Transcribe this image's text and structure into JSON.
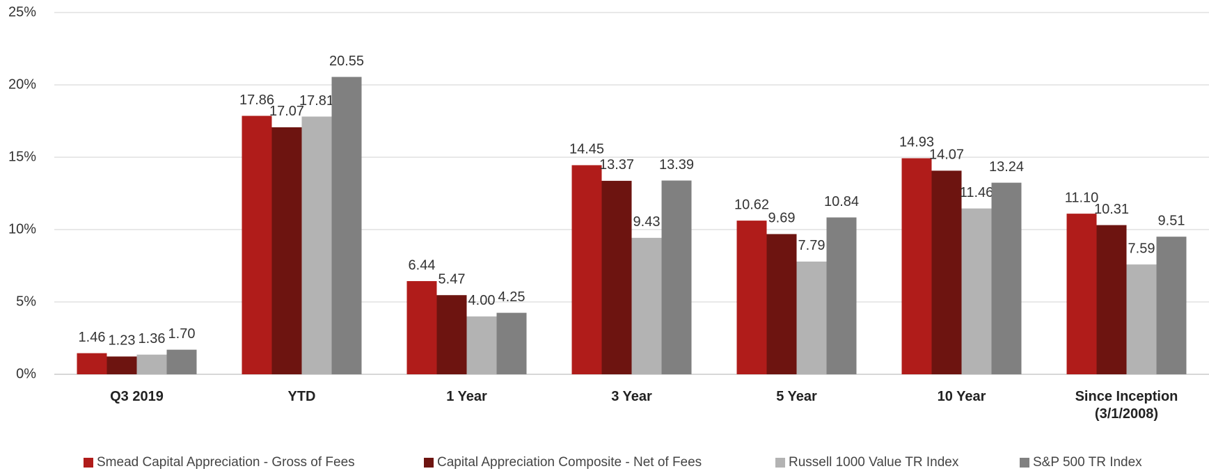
{
  "chart_data": {
    "type": "bar",
    "categories": [
      "Q3 2019",
      "YTD",
      "1 Year",
      "3 Year",
      "5 Year",
      "10 Year",
      "Since Inception (3/1/2008)"
    ],
    "series": [
      {
        "name": "Smead Capital Appreciation - Gross of Fees",
        "color": "#b01c1a",
        "values": [
          1.46,
          17.86,
          6.44,
          14.45,
          10.62,
          14.93,
          11.1
        ],
        "value_labels": [
          "1.46",
          "17.86",
          "6.44",
          "14.45",
          "10.62",
          "14.93",
          "11.10"
        ]
      },
      {
        "name": "Capital Appreciation Composite - Net of Fees",
        "color": "#6d1410",
        "values": [
          1.23,
          17.07,
          5.47,
          13.37,
          9.69,
          14.07,
          10.31
        ],
        "value_labels": [
          "1.23",
          "17.07",
          "5.47",
          "13.37",
          "9.69",
          "14.07",
          "10.31"
        ]
      },
      {
        "name": "Russell 1000 Value TR Index",
        "color": "#b3b3b3",
        "values": [
          1.36,
          17.81,
          4.0,
          9.43,
          7.79,
          11.46,
          7.59
        ],
        "value_labels": [
          "1.36",
          "17.81",
          "4.00",
          "9.43",
          "7.79",
          "11.46",
          "7.59"
        ]
      },
      {
        "name": "S&P 500 TR Index",
        "color": "#808080",
        "values": [
          1.7,
          20.55,
          4.25,
          13.39,
          10.84,
          13.24,
          9.51
        ],
        "value_labels": [
          "1.70",
          "20.55",
          "4.25",
          "13.39",
          "10.84",
          "13.24",
          "9.51"
        ]
      }
    ],
    "ylim": [
      0,
      25
    ],
    "yticks": [
      {
        "value": 0,
        "label": "0%"
      },
      {
        "value": 5,
        "label": "5%"
      },
      {
        "value": 10,
        "label": "10%"
      },
      {
        "value": 15,
        "label": "15%"
      },
      {
        "value": 20,
        "label": "20%"
      },
      {
        "value": 25,
        "label": "25%"
      }
    ],
    "grid": true,
    "legend": "bottom"
  }
}
